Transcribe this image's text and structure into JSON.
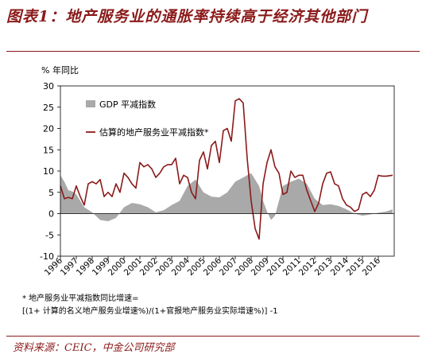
{
  "title": "图表1：地产服务业的通胀率持续高于经济其他部门",
  "notes": {
    "line1": "* 地产服务业平减指数同比增速=",
    "line2": "[(1+ 计算的名义地产服务业增速%)/(1+官报地产服务业实际增速%)] -1"
  },
  "source": "资料来源：CEIC，中金公司研究部",
  "colors": {
    "gdp_area": "#a9a9a9",
    "real_estate_line": "#8b1a1a",
    "brand": "#8b1a1a"
  },
  "chart_data": {
    "type": "area",
    "ylabel": "% 年同比",
    "ylim": [
      -10,
      30
    ],
    "yticks": [
      -10,
      -5,
      0,
      5,
      10,
      15,
      20,
      25,
      30
    ],
    "xlim": [
      1996,
      2017
    ],
    "xticks": [
      "1996",
      "1997",
      "1998",
      "1999",
      "2000",
      "2001",
      "2002",
      "2003",
      "2004",
      "2005",
      "2006",
      "2007",
      "2008",
      "2009",
      "2010",
      "2011",
      "2012",
      "2013",
      "2014",
      "2015",
      "2016"
    ],
    "grid": false,
    "legend_position": "top-left",
    "series": [
      {
        "name": "GDP 平减指数",
        "kind": "area",
        "x": [
          1996,
          1996.25,
          1996.5,
          1996.75,
          1997,
          1997.5,
          1998,
          1998.5,
          1999,
          1999.5,
          2000,
          2000.5,
          2001,
          2001.5,
          2002,
          2002.5,
          2003,
          2003.5,
          2004,
          2004.5,
          2005,
          2005.5,
          2006,
          2006.5,
          2007,
          2007.5,
          2008,
          2008.25,
          2008.5,
          2008.75,
          2009,
          2009.25,
          2009.5,
          2009.75,
          2010,
          2010.5,
          2011,
          2011.5,
          2012,
          2012.5,
          2013,
          2013.5,
          2014,
          2014.5,
          2015,
          2015.5,
          2016,
          2016.5,
          2016.9
        ],
        "values": [
          9,
          7.5,
          5.5,
          5.2,
          4.5,
          1.5,
          0.3,
          -1.5,
          -1.8,
          -1.0,
          1.5,
          2.5,
          2.2,
          1.5,
          0.3,
          0.8,
          2.0,
          3.0,
          6.5,
          8.0,
          5.0,
          4.0,
          3.8,
          5.0,
          7.5,
          8.5,
          9.5,
          8.0,
          6.5,
          3.0,
          0.5,
          -1.5,
          -0.5,
          3.0,
          6.5,
          7.5,
          8.2,
          7.0,
          3.5,
          2.0,
          2.2,
          1.8,
          1.0,
          0.0,
          -0.5,
          -0.2,
          0.2,
          0.5,
          1.0
        ]
      },
      {
        "name": "估算的地产服务业平减指数*",
        "kind": "line",
        "x": [
          1996,
          1996.25,
          1996.5,
          1996.75,
          1997,
          1997.25,
          1997.5,
          1997.75,
          1998,
          1998.25,
          1998.5,
          1998.75,
          1999,
          1999.25,
          1999.5,
          1999.75,
          2000,
          2000.25,
          2000.5,
          2000.75,
          2001,
          2001.25,
          2001.5,
          2001.75,
          2002,
          2002.25,
          2002.5,
          2002.75,
          2003,
          2003.25,
          2003.5,
          2003.75,
          2004,
          2004.25,
          2004.5,
          2004.75,
          2005,
          2005.25,
          2005.5,
          2005.75,
          2006,
          2006.25,
          2006.5,
          2006.75,
          2007,
          2007.25,
          2007.5,
          2007.75,
          2008,
          2008.25,
          2008.5,
          2008.75,
          2009,
          2009.25,
          2009.5,
          2009.75,
          2010,
          2010.25,
          2010.5,
          2010.75,
          2011,
          2011.25,
          2011.5,
          2011.75,
          2012,
          2012.25,
          2012.5,
          2012.75,
          2013,
          2013.25,
          2013.5,
          2013.75,
          2014,
          2014.25,
          2014.5,
          2014.75,
          2015,
          2015.25,
          2015.5,
          2015.75,
          2016,
          2016.25,
          2016.5,
          2016.9
        ],
        "values": [
          6.5,
          3.5,
          3.8,
          3.5,
          6.5,
          4.0,
          2.0,
          7.0,
          7.5,
          7.0,
          8.0,
          4.0,
          5.0,
          4.0,
          7.0,
          5.0,
          9.5,
          8.5,
          7.0,
          6.0,
          12.0,
          11.0,
          11.5,
          10.5,
          8.5,
          9.5,
          11.0,
          11.5,
          11.5,
          13.0,
          7.0,
          9.0,
          8.5,
          5.0,
          3.5,
          12.5,
          14.5,
          10.5,
          16.0,
          17.0,
          12.0,
          19.5,
          20.0,
          17.0,
          26.5,
          27.0,
          26.0,
          13.0,
          3.0,
          -3.5,
          -6.0,
          7.0,
          12.0,
          15.0,
          11.0,
          9.5,
          4.5,
          5.0,
          10.0,
          8.5,
          9.0,
          9.0,
          5.5,
          3.0,
          0.5,
          2.5,
          7.0,
          9.5,
          9.8,
          7.0,
          6.5,
          3.5,
          2.0,
          1.5,
          0.5,
          1.0,
          4.5,
          5.0,
          4.0,
          5.5,
          9.0,
          8.8,
          8.8,
          9.0
        ]
      }
    ]
  }
}
